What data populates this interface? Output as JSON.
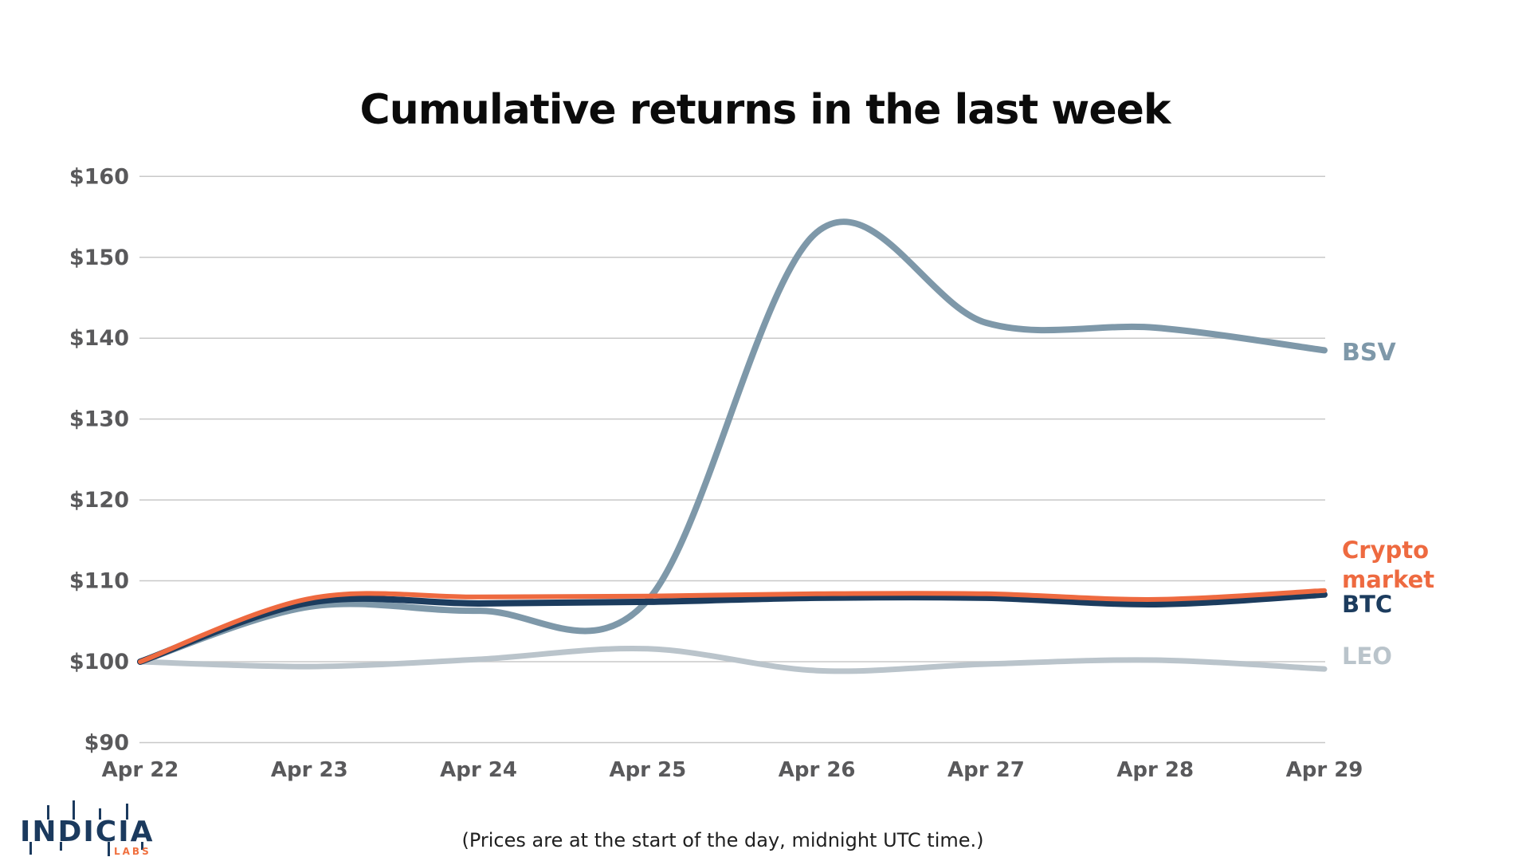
{
  "title": "Cumulative returns in the last week",
  "footnote": "(Prices are at the start of the day, midnight UTC time.)",
  "logo": {
    "name": "INDICIA",
    "sub": "LABS"
  },
  "colors": {
    "background": "#ffffff",
    "grid": "#c8c8c8",
    "axis_text": "#59595b",
    "title_text": "#0b0b0b",
    "logo_navy": "#1b3a5e",
    "logo_orange": "#f0703f"
  },
  "chart_data": {
    "type": "line",
    "title": "Cumulative returns in the last week",
    "x_categories": [
      "Apr 22",
      "Apr 23",
      "Apr 24",
      "Apr 25",
      "Apr 26",
      "Apr 27",
      "Apr 28",
      "Apr 29"
    ],
    "xlabel": "",
    "ylabel": "",
    "ylim": [
      90,
      160
    ],
    "y_tick_step": 10,
    "y_tick_prefix": "$",
    "grid": "horizontal",
    "legend_position": "right of line ends",
    "smoothing": "spline",
    "series": [
      {
        "name": "BSV",
        "label_lines": [
          "BSV"
        ],
        "color": "#7E98A9",
        "line_width": 8,
        "values": [
          100,
          106.8,
          106.3,
          107.6,
          153.1,
          141.9,
          141.3,
          138.5
        ]
      },
      {
        "name": "LEO",
        "label_lines": [
          "LEO"
        ],
        "color": "#BAC4CB",
        "line_width": 7,
        "values": [
          100,
          99.4,
          100.3,
          101.6,
          98.9,
          99.7,
          100.2,
          99.1
        ]
      },
      {
        "name": "BTC",
        "label_lines": [
          "BTC"
        ],
        "color": "#1C3C5E",
        "line_width": 8,
        "values": [
          100,
          107.3,
          107.2,
          107.4,
          107.9,
          107.9,
          107.1,
          108.3
        ]
      },
      {
        "name": "Crypto market",
        "label_lines": [
          "Crypto",
          "market"
        ],
        "color": "#EE6A40",
        "line_width": 6,
        "values": [
          100,
          107.8,
          108.0,
          108.1,
          108.4,
          108.4,
          107.7,
          108.8
        ]
      }
    ],
    "note": "(Prices are at the start of the day, midnight UTC time.)"
  }
}
